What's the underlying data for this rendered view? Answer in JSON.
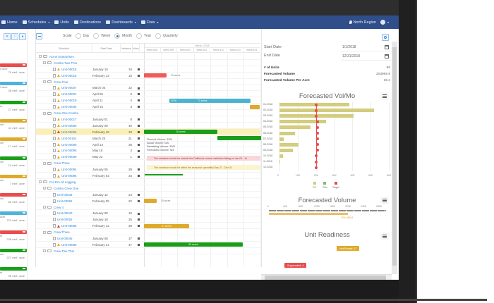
{
  "nav": {
    "items": [
      {
        "label": "Home",
        "icon": "home-icon",
        "caret": false
      },
      {
        "label": "Schedules",
        "icon": "calendar-icon",
        "caret": true
      },
      {
        "label": "Units",
        "icon": "units-icon",
        "caret": false
      },
      {
        "label": "Destinations",
        "icon": "truck-icon",
        "caret": false
      },
      {
        "label": "Dashboards",
        "icon": "bar-chart-icon",
        "caret": true
      },
      {
        "label": "Data",
        "icon": "file-icon",
        "caret": true
      }
    ],
    "region": "North Region",
    "caret": "▾"
  },
  "left_panel": {
    "cards": [
      {
        "acre": "5 acre",
        "volume": "76 mbf / acre",
        "color": "#e84c4c"
      },
      {
        "acre": "3 acre",
        "volume": "38 mbf / acre",
        "color": "#4fb3d9"
      },
      {
        "acre": "re",
        "volume": "27 mbf / acre",
        "color": "#1a9e1a"
      },
      {
        "acre": "cre",
        "volume": "41 mbf / acre",
        "color": "#deaa2c"
      },
      {
        "acre": "cre",
        "volume": "17 mbf / acre",
        "color": "#deaa2c"
      },
      {
        "acre": "cre",
        "volume": "10 mbf / acre",
        "color": "#1a9e1a"
      },
      {
        "acre": "cre",
        "volume": "7 mbf / acre",
        "color": "#deaa2c"
      },
      {
        "acre": "cre",
        "volume": "60 mbf / acre",
        "color": "#e84c4c"
      },
      {
        "acre": "acre",
        "volume": "722 mbf / acre",
        "color": "#4fb3d9"
      },
      {
        "acre": "re",
        "volume": "238 mbf / acre",
        "color": "#e84c4c"
      },
      {
        "acre": "cre",
        "volume": "227 mbf / acre",
        "color": "#1a9e1a"
      },
      {
        "acre": "re",
        "volume": "95 mbf / acre",
        "color": "#1a9e1a"
      }
    ]
  },
  "toolbar": {
    "scale_label": "Scale",
    "scales": [
      {
        "label": "Day",
        "selected": false
      },
      {
        "label": "Week",
        "selected": false
      },
      {
        "label": "Month",
        "selected": true
      },
      {
        "label": "Year",
        "selected": false
      },
      {
        "label": "Quarterly",
        "selected": false
      }
    ]
  },
  "grid": {
    "columns": {
      "schedule": "Schedule",
      "start_date": "Start Date",
      "variance": "Variance",
      "work": "Work"
    },
    "timeline_month": "March, 2018",
    "weeks": [
      "Week #08",
      "Week #09",
      "Week #10",
      "Week #11",
      "Week #12",
      "Week #13",
      "Week #14"
    ],
    "rows": [
      {
        "level": 0,
        "type": "group",
        "name": "Acme Enterprises"
      },
      {
        "level": 1,
        "type": "group",
        "name": "Combo Two Thin"
      },
      {
        "level": 2,
        "type": "unit",
        "name": "Unit-00015",
        "warn": "yellow",
        "date": "January 10",
        "variance": "34"
      },
      {
        "level": 2,
        "type": "unit",
        "name": "Unit-00016",
        "warn": "yellow",
        "date": "February 13",
        "variance": "10"
      },
      {
        "level": 1,
        "type": "group",
        "name": "Crew Four"
      },
      {
        "level": 2,
        "type": "unit",
        "name": "Unit-00007",
        "warn": "yellow",
        "date": "March 04",
        "variance": "32"
      },
      {
        "level": 2,
        "type": "unit",
        "name": "Unit-00021",
        "warn": "yellow",
        "date": "April 05",
        "variance": "6"
      },
      {
        "level": 2,
        "type": "unit",
        "name": "Unit-00019",
        "warn": "yellow",
        "date": "April 11",
        "variance": "4"
      },
      {
        "level": 2,
        "type": "unit",
        "name": "Unit-00006",
        "warn": "yellow",
        "date": "April 15",
        "variance": "3"
      },
      {
        "level": 1,
        "type": "group",
        "name": "Crew One Combo"
      },
      {
        "level": 2,
        "type": "unit",
        "name": "Unit-00017",
        "warn": "yellow",
        "date": "January 01",
        "variance": "8"
      },
      {
        "level": 2,
        "type": "unit",
        "name": "Unit-00080",
        "warn": "yellow",
        "date": "January 09",
        "variance": "40"
      },
      {
        "level": 2,
        "type": "unit",
        "name": "Unit-00055",
        "warn": "red",
        "date": "February 18",
        "variance": "33",
        "highlight": true
      },
      {
        "level": 2,
        "type": "unit",
        "name": "Unit-0010x",
        "warn": "yellow",
        "date": "March 23",
        "variance": "21"
      },
      {
        "level": 2,
        "type": "unit",
        "name": "Unit-00090",
        "warn": "yellow",
        "date": "April 13",
        "variance": "35"
      },
      {
        "level": 2,
        "type": "unit",
        "name": "Unit-00095",
        "warn": "yellow",
        "date": "May 18",
        "variance": "4"
      },
      {
        "level": 2,
        "type": "unit",
        "name": "Unit-00009",
        "warn": "yellow",
        "date": "May 22",
        "variance": "1"
      },
      {
        "level": 1,
        "type": "group",
        "name": "Crew Three"
      },
      {
        "level": 2,
        "type": "unit",
        "name": "Unit-00094",
        "warn": "yellow",
        "date": "January 05",
        "variance": "29"
      },
      {
        "level": 2,
        "type": "unit",
        "name": "Unit-00095",
        "warn": "yellow",
        "date": "February 03",
        "variance": "34"
      },
      {
        "level": 0,
        "type": "group",
        "name": "Cut Em All Logging"
      },
      {
        "level": 1,
        "type": "group",
        "name": "Combo Crew One"
      },
      {
        "level": 2,
        "type": "unit",
        "name": "Unit-00033",
        "warn": "",
        "date": "January 12",
        "variance": "24"
      },
      {
        "level": 2,
        "type": "unit",
        "name": "Unit-00091",
        "warn": "",
        "date": "February 05",
        "variance": "22"
      },
      {
        "level": 1,
        "type": "group",
        "name": "Crew 4"
      },
      {
        "level": 2,
        "type": "unit",
        "name": "Unit-00040",
        "warn": "",
        "date": "January 08",
        "variance": "10"
      },
      {
        "level": 2,
        "type": "unit",
        "name": "Unit-00052",
        "warn": "",
        "date": "January 18",
        "variance": "25"
      },
      {
        "level": 2,
        "type": "unit",
        "name": "Unit-00058",
        "warn": "red",
        "date": "February 12",
        "variance": "28"
      },
      {
        "level": 1,
        "type": "group",
        "name": "Crew Three"
      },
      {
        "level": 2,
        "type": "unit",
        "name": "Unit-00045",
        "warn": "",
        "date": "January 08",
        "variance": "37"
      },
      {
        "level": 2,
        "type": "unit",
        "name": "Unit-00068",
        "warn": "yellow",
        "date": "February 14",
        "variance": "47"
      },
      {
        "level": 1,
        "type": "group",
        "name": "Crew Two Thin"
      }
    ],
    "bars": [
      {
        "row": 3,
        "left": 0,
        "width": 32,
        "color": "#f15a5a",
        "inside": "",
        "outside": "22 acres"
      },
      {
        "row": 7,
        "left": 36,
        "width": 115,
        "color": "#4cb3cf",
        "inside": "67%",
        "inside2": "71 acres"
      },
      {
        "row": 8,
        "left": 150,
        "width": 14,
        "color": "#deaa2c",
        "inside": ""
      },
      {
        "row": 12,
        "left": 0,
        "width": 104,
        "color": "#1a9e1a",
        "inside": "16 acres"
      },
      {
        "row": 13,
        "left": 104,
        "width": 62,
        "color": "#1a9e1a",
        "inside": ""
      },
      {
        "row": 23,
        "left": 0,
        "width": 18,
        "color": "#deaa2c",
        "inside": "",
        "outside": "25 acres"
      },
      {
        "row": 27,
        "left": 0,
        "width": 64,
        "color": "#deaa2c",
        "inside": "27 acres"
      },
      {
        "row": 30,
        "left": 0,
        "width": 140,
        "color": "#1a9e1a",
        "inside": "93 acres"
      }
    ],
    "tooltip": {
      "lines": [
        "Planned Volume: 3200",
        "Actual Volume: N/A",
        "Remaining Volume: 3200",
        "Forecasted Volume: N/A"
      ],
      "alert_red": "The schedule should be outside the California condor restriction falling on Jan 01 - Ju",
      "alert_yellow": "The schedule should be within the seasonal operability Sep 21 - Dec 01."
    },
    "scroll_left": "◂"
  },
  "right_panel": {
    "start_date_label": "Start Date",
    "start_date": "1/1/2018",
    "end_date_label": "End Date",
    "end_date": "12/31/2018",
    "stats": [
      {
        "label": "# of Units",
        "value": "86"
      },
      {
        "label": "Forecasted Volume",
        "value": "203989.8"
      },
      {
        "label": "Forecasted Volume Per Acre",
        "value": "38.4"
      }
    ],
    "bullet": {
      "title": "Forecasted Volume",
      "ticks": [
        "0",
        "40K",
        "80K",
        "120K",
        "160K",
        "200K",
        "240K",
        "280K"
      ],
      "value_label": "203,989.8",
      "value": 203989.8,
      "max": 300000
    },
    "readiness": {
      "title": "Unit Readiness",
      "badges": [
        {
          "label": "Suspended: 4",
          "color": "#e84c4c"
        },
        {
          "label": "Not Ready: 17",
          "color": "#deaa2c"
        }
      ]
    }
  },
  "chart_data": {
    "type": "bar",
    "orientation": "horizontal",
    "title": "Forecasted Vol/Mo",
    "categories": [
      "01-2018",
      "02-2018",
      "03-2018",
      "04-2018",
      "05-2018",
      "06-2018",
      "07-2018",
      "08-2018",
      "09-2018",
      "10-2018",
      "11-2018",
      "12-2018"
    ],
    "series": [
      {
        "name": "CC",
        "color": "#d4cc7e",
        "values": [
          38500,
          52000,
          40500,
          25500,
          17000,
          8500,
          2500,
          10500,
          7500,
          2000,
          300,
          0
        ]
      },
      {
        "name": "Thin",
        "color": "#8bb86b",
        "values": [
          0,
          0,
          500,
          0,
          0,
          0,
          0,
          0,
          0,
          0,
          0,
          0
        ]
      },
      {
        "name": "Target",
        "color": "#e84c4c",
        "type": "line",
        "values": [
          20000,
          20000,
          20000,
          20800,
          20800,
          20800,
          20800,
          20800,
          20800,
          20000,
          20000,
          20000
        ]
      }
    ],
    "xticks": [
      "0",
      "10K",
      "20K",
      "30K",
      "40K",
      "50K",
      "60K"
    ],
    "xlim": [
      0,
      60000
    ],
    "legend_position": "bottom",
    "grid": true
  }
}
